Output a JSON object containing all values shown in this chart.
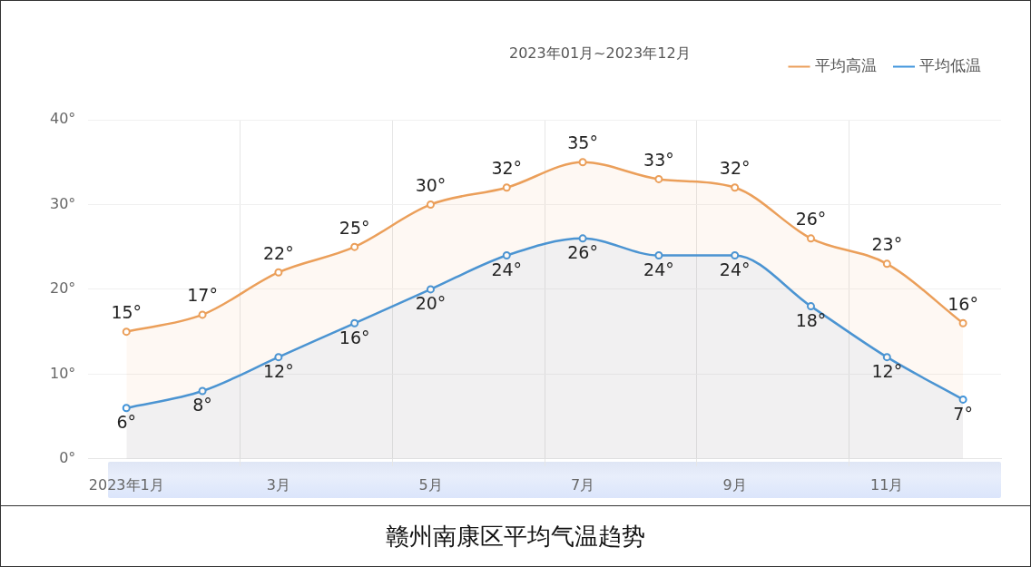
{
  "chart_data": {
    "type": "line",
    "title": "赣州南康区平均气温趋势",
    "subtitle": "2023年01月~2023年12月",
    "categories": [
      "2023年1月",
      null,
      "3月",
      null,
      "5月",
      null,
      "7月",
      null,
      "9月",
      null,
      "11月",
      null
    ],
    "series": [
      {
        "name": "平均高温",
        "color": "#eb9f5a",
        "values": [
          15,
          17,
          22,
          25,
          30,
          32,
          35,
          33,
          32,
          26,
          23,
          16
        ],
        "value_labels": [
          "15°",
          "17°",
          "22°",
          "25°",
          "30°",
          "32°",
          "35°",
          "33°",
          "32°",
          "26°",
          "23°",
          "16°"
        ]
      },
      {
        "name": "平均低温",
        "color": "#3f94dc",
        "values": [
          6,
          8,
          12,
          16,
          20,
          24,
          26,
          24,
          24,
          18,
          12,
          7
        ],
        "value_labels": [
          "6°",
          "8°",
          "12°",
          "16°",
          "20°",
          "24°",
          "26°",
          "24°",
          "24°",
          "18°",
          "12°",
          "7°"
        ]
      }
    ],
    "ylim": [
      0,
      40
    ],
    "yticks": [
      {
        "value": 0,
        "label": "0°"
      },
      {
        "value": 10,
        "label": "10°"
      },
      {
        "value": 20,
        "label": "20°"
      },
      {
        "value": 30,
        "label": "30°"
      },
      {
        "value": 40,
        "label": "40°"
      }
    ],
    "grid": true,
    "legend": "top right",
    "marker": "circle",
    "line_style": "solid"
  }
}
